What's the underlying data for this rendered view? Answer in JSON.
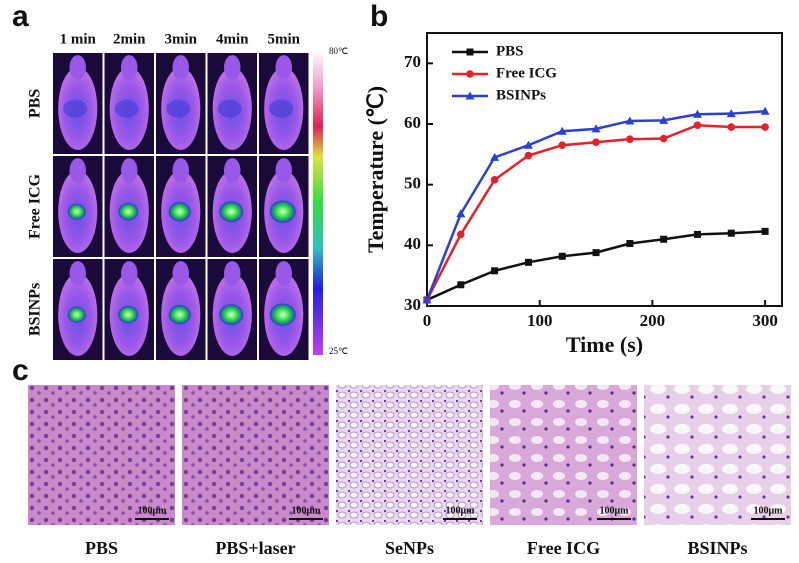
{
  "chart_data": {
    "type": "line",
    "x_label": "Time (s)",
    "y_label": "Temperature (℃)",
    "x": [
      0,
      30,
      60,
      90,
      120,
      150,
      180,
      210,
      240,
      270,
      300
    ],
    "series": [
      {
        "name": "PBS",
        "color": "#111111",
        "marker": "square",
        "values": [
          31,
          33.5,
          35.8,
          37.2,
          38.2,
          38.8,
          40.3,
          41,
          41.8,
          42,
          42.3
        ]
      },
      {
        "name": "Free ICG",
        "color": "#e8202a",
        "marker": "circle",
        "values": [
          31,
          41.8,
          50.8,
          54.8,
          56.5,
          57,
          57.5,
          57.6,
          59.8,
          59.5,
          59.5
        ]
      },
      {
        "name": "BSINPs",
        "color": "#2a3fd6",
        "marker": "triangle",
        "values": [
          31,
          45.2,
          54.5,
          56.5,
          58.8,
          59.2,
          60.5,
          60.6,
          61.6,
          61.7,
          62.1
        ]
      }
    ],
    "xlim": [
      0,
      315
    ],
    "xticks": [
      0,
      100,
      200,
      300
    ],
    "ylim": [
      30,
      75
    ],
    "yticks": [
      30,
      40,
      50,
      60,
      70
    ],
    "legend": "upper left",
    "grid": false
  },
  "panel_labels": [
    "a",
    "b",
    "c"
  ],
  "panel_a": {
    "columns": [
      "1 min",
      "2min",
      "3min",
      "4min",
      "5min"
    ],
    "rows": [
      "PBS",
      "Free ICG",
      "BSINPs"
    ],
    "colorbar_max": "80℃",
    "colorbar_min": "25℃"
  },
  "panel_c": {
    "images": [
      {
        "label": "PBS",
        "scale_bar": "100μm"
      },
      {
        "label": "PBS+laser",
        "scale_bar": "100μm"
      },
      {
        "label": "SeNPs",
        "scale_bar": "100μm"
      },
      {
        "label": "Free ICG",
        "scale_bar": "100μm"
      },
      {
        "label": "BSINPs",
        "scale_bar": "100μm"
      }
    ]
  }
}
